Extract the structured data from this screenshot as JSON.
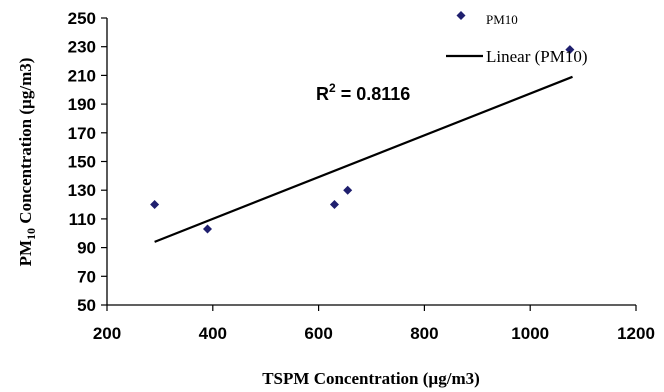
{
  "chart_data": {
    "type": "scatter",
    "x": [
      290,
      390,
      630,
      655,
      1075
    ],
    "y": [
      120,
      103,
      120,
      130,
      228
    ],
    "series": [
      {
        "name": "PM10",
        "x": [
          290,
          390,
          630,
          655,
          1075
        ],
        "y": [
          120,
          103,
          120,
          130,
          228
        ],
        "marker": "diamond",
        "color": "#1f1f6e"
      }
    ],
    "trendline": {
      "name": "Linear (PM10)",
      "type": "linear",
      "from": [
        290,
        94
      ],
      "to": [
        1080,
        209
      ],
      "color": "#000000"
    },
    "r_squared_label": {
      "main": "R",
      "sup": "2",
      "value": " = 0.8116"
    },
    "xlabel": "TSPM Concentration (µg/m3)",
    "ylabel": {
      "prefix": "PM",
      "sub": "10",
      "suffix": " Concentration (µg/m3)"
    },
    "xlim": [
      200,
      1200
    ],
    "ylim": [
      50,
      250
    ],
    "xticks": [
      "200",
      "400",
      "600",
      "800",
      "1000",
      "1200"
    ],
    "yticks": [
      "50",
      "70",
      "90",
      "110",
      "130",
      "150",
      "170",
      "190",
      "210",
      "230",
      "250"
    ],
    "grid": false,
    "legend_position": "top-right"
  }
}
